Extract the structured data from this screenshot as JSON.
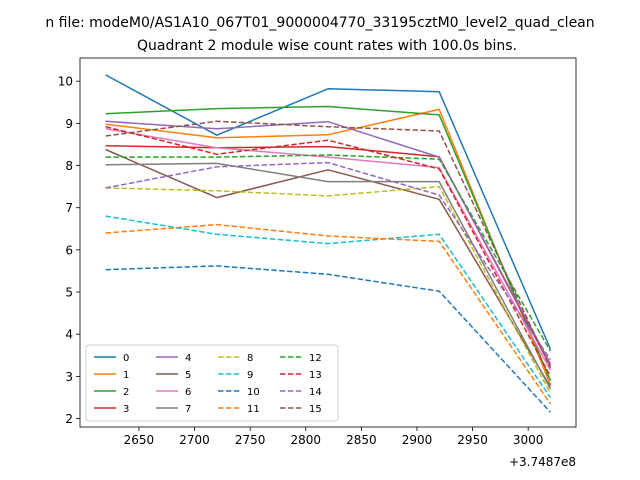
{
  "chart_data": {
    "type": "line",
    "suptitle": "n file: modeM0/AS1A10_067T01_9000004770_33195cztM0_level2_quad_clean",
    "title": "Quadrant 2 module wise count rates with 100.0s bins.",
    "xlabel": "",
    "ylabel": "",
    "x_offset_label": "+3.7487e8",
    "x": [
      2620,
      2720,
      2820,
      2920,
      3020
    ],
    "xlim": [
      2597,
      3043
    ],
    "ylim": [
      1.8,
      10.55
    ],
    "x_ticks": [
      2650,
      2700,
      2750,
      2800,
      2850,
      2900,
      2950,
      3000
    ],
    "y_ticks": [
      2,
      3,
      4,
      5,
      6,
      7,
      8,
      9,
      10
    ],
    "grid": false,
    "legend_position": "lower-left",
    "legend_columns": 4,
    "series": [
      {
        "name": "0",
        "color": "#1f77b4",
        "dash": "solid",
        "values": [
          10.15,
          8.72,
          9.82,
          9.75,
          3.65
        ]
      },
      {
        "name": "1",
        "color": "#ff7f0e",
        "dash": "solid",
        "values": [
          8.98,
          8.66,
          8.73,
          9.33,
          2.8
        ]
      },
      {
        "name": "2",
        "color": "#2ca02c",
        "dash": "solid",
        "values": [
          9.23,
          9.35,
          9.4,
          9.2,
          2.9
        ]
      },
      {
        "name": "3",
        "color": "#d62728",
        "dash": "solid",
        "values": [
          8.47,
          8.42,
          8.45,
          8.21,
          3.25
        ]
      },
      {
        "name": "4",
        "color": "#9467bd",
        "dash": "solid",
        "values": [
          9.05,
          8.87,
          9.04,
          8.2,
          3.3
        ]
      },
      {
        "name": "5",
        "color": "#8c564b",
        "dash": "solid",
        "values": [
          8.38,
          7.24,
          7.9,
          7.2,
          2.75
        ]
      },
      {
        "name": "6",
        "color": "#e377c2",
        "dash": "solid",
        "values": [
          8.87,
          8.42,
          8.2,
          7.95,
          3.15
        ]
      },
      {
        "name": "7",
        "color": "#7f7f7f",
        "dash": "solid",
        "values": [
          8.02,
          8.05,
          7.62,
          7.62,
          2.7
        ]
      },
      {
        "name": "8",
        "color": "#bcbd22",
        "dash": "dashed",
        "values": [
          7.47,
          7.4,
          7.28,
          7.5,
          2.6
        ]
      },
      {
        "name": "9",
        "color": "#17becf",
        "dash": "dashed",
        "values": [
          6.8,
          6.37,
          6.15,
          6.37,
          2.5
        ]
      },
      {
        "name": "10",
        "color": "#1f77b4",
        "dash": "dashed",
        "values": [
          5.53,
          5.62,
          5.42,
          5.02,
          2.15
        ]
      },
      {
        "name": "11",
        "color": "#ff7f0e",
        "dash": "dashed",
        "values": [
          6.4,
          6.6,
          6.33,
          6.2,
          2.35
        ]
      },
      {
        "name": "12",
        "color": "#2ca02c",
        "dash": "dashed",
        "values": [
          8.2,
          8.2,
          8.25,
          8.15,
          3.6
        ]
      },
      {
        "name": "13",
        "color": "#d62728",
        "dash": "dashed",
        "values": [
          8.92,
          8.27,
          8.6,
          7.92,
          3.0
        ]
      },
      {
        "name": "14",
        "color": "#9467bd",
        "dash": "dashed",
        "values": [
          7.47,
          7.97,
          8.07,
          7.3,
          3.4
        ]
      },
      {
        "name": "15",
        "color": "#8c564b",
        "dash": "dashed",
        "values": [
          8.7,
          9.05,
          8.92,
          8.82,
          3.2
        ]
      }
    ]
  }
}
